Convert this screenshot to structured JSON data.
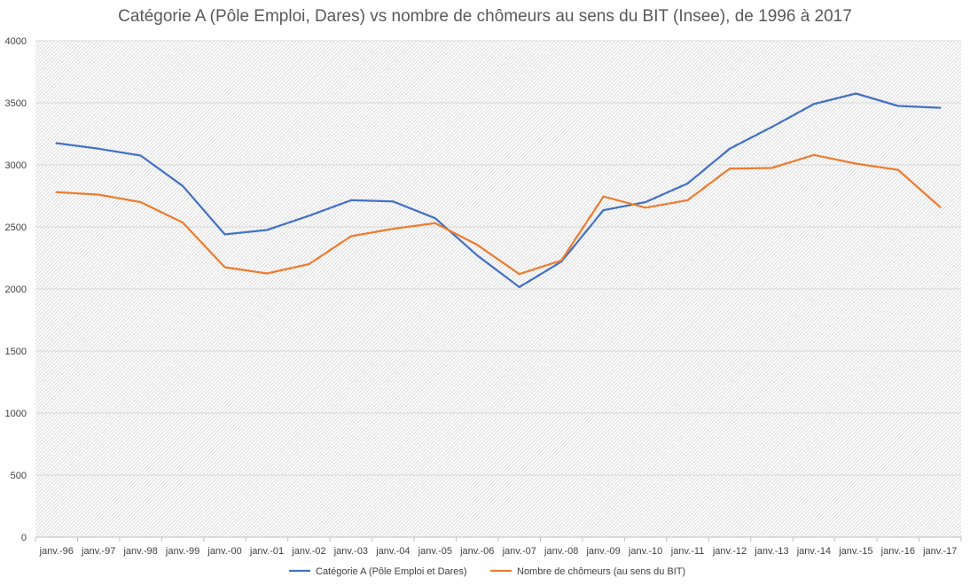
{
  "chart_data": {
    "type": "line",
    "title": "Catégorie A (Pôle Emploi, Dares) vs nombre de chômeurs au sens du BIT (Insee), de 1996 à 2017",
    "xlabel": "",
    "ylabel": "",
    "categories": [
      "janv.-96",
      "janv.-97",
      "janv.-98",
      "janv.-99",
      "janv.-00",
      "janv.-01",
      "janv.-02",
      "janv.-03",
      "janv.-04",
      "janv.-05",
      "janv.-06",
      "janv.-07",
      "janv.-08",
      "janv.-09",
      "janv.-10",
      "janv.-11",
      "janv.-12",
      "janv.-13",
      "janv.-14",
      "janv.-15",
      "janv.-16",
      "janv.-17"
    ],
    "ylim": [
      0,
      4000
    ],
    "yticks": [
      "0",
      "500",
      "1000",
      "1500",
      "2000",
      "2500",
      "3000",
      "3500",
      "4000"
    ],
    "grid": true,
    "legend_position": "bottom",
    "series": [
      {
        "name": "Catégorie A (Pôle Emploi et Dares)",
        "color": "#4472C4",
        "values": [
          3175,
          3130,
          3075,
          2830,
          2440,
          2475,
          2590,
          2715,
          2705,
          2570,
          2270,
          2015,
          2220,
          2635,
          2700,
          2850,
          3130,
          3305,
          3490,
          3575,
          3475,
          3460
        ]
      },
      {
        "name": "Nombre de chômeurs (au sens du BIT)",
        "color": "#ED7D31",
        "values": [
          2780,
          2760,
          2700,
          2535,
          2175,
          2125,
          2200,
          2425,
          2485,
          2530,
          2355,
          2120,
          2230,
          2745,
          2655,
          2715,
          2970,
          2975,
          3080,
          3010,
          2960,
          2660
        ]
      }
    ]
  }
}
